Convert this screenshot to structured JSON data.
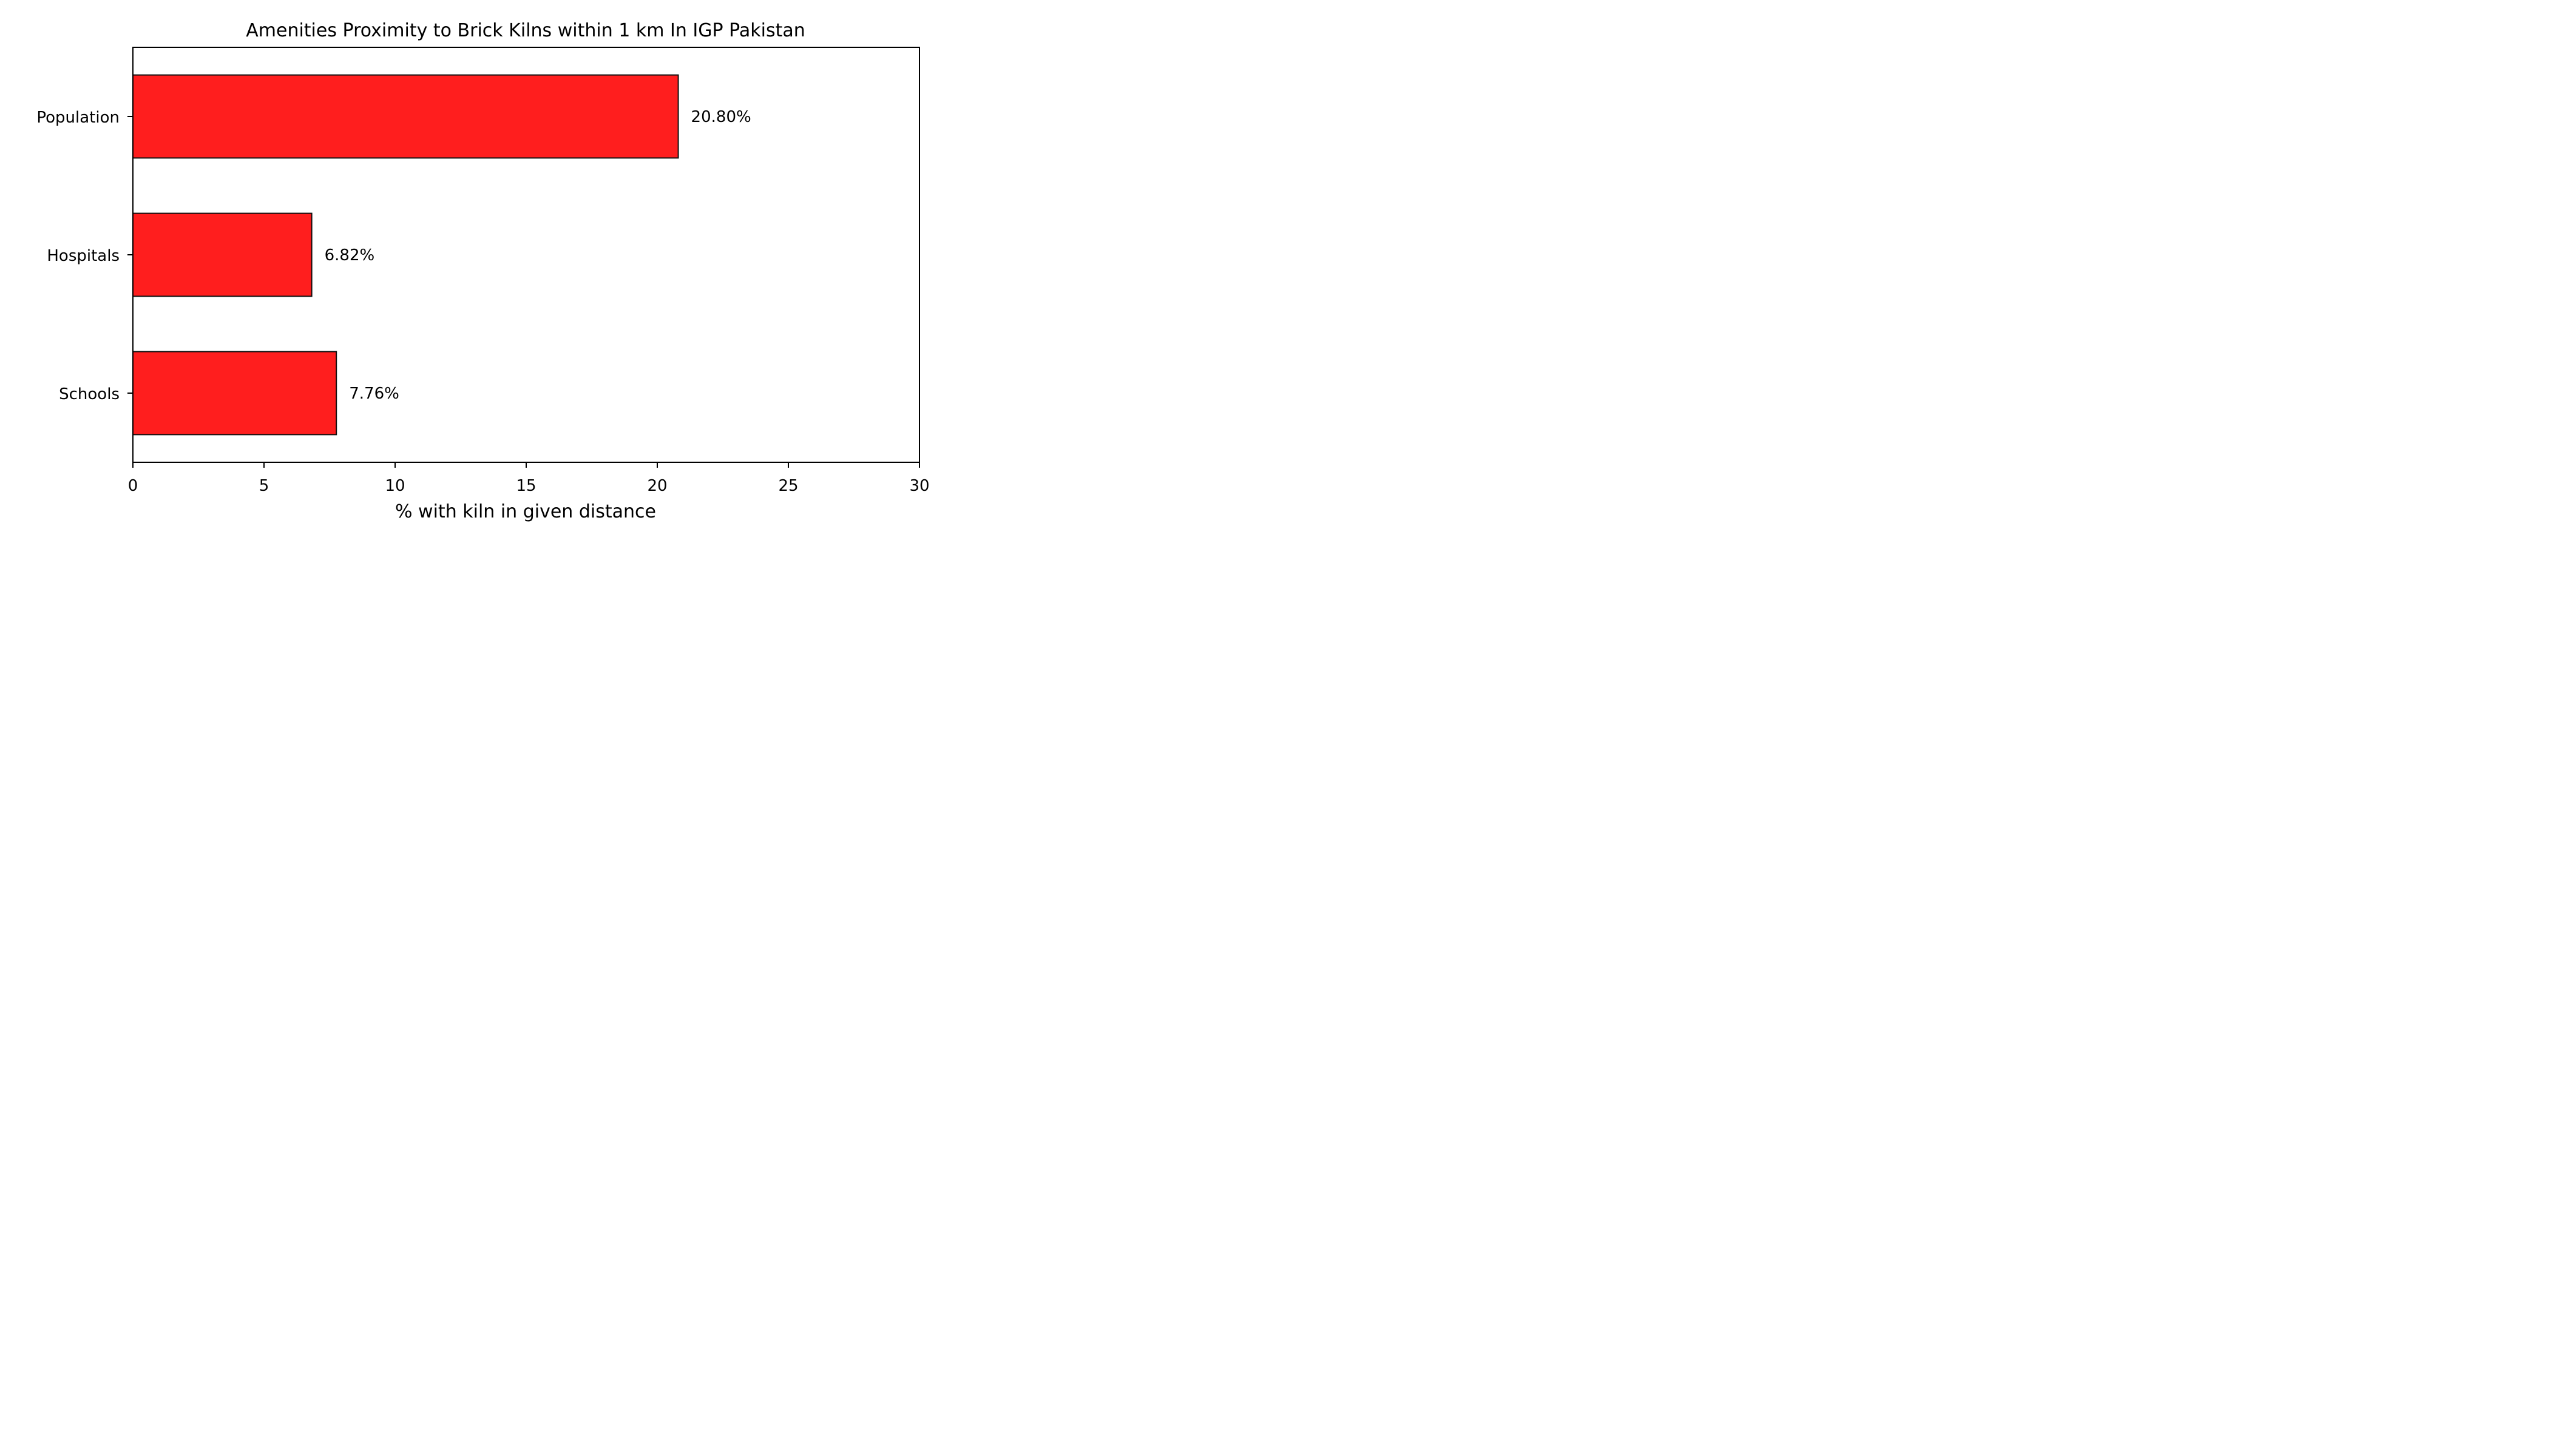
{
  "chart_data": {
    "type": "bar",
    "orientation": "horizontal",
    "title": "Amenities Proximity to Brick Kilns within 1 km In IGP Pakistan",
    "xlabel": "% with kiln in given distance",
    "ylabel": "",
    "categories": [
      "Population",
      "Hospitals",
      "Schools"
    ],
    "values": [
      20.8,
      6.82,
      7.76
    ],
    "data_labels": [
      "20.80%",
      "6.82%",
      "7.76%"
    ],
    "xlim": [
      0,
      30
    ],
    "xticks": [
      0,
      5,
      10,
      15,
      20,
      25,
      30
    ],
    "grid": false,
    "legend": "none",
    "colors": {
      "bar_fill": "#ff1e1e",
      "bar_edge": "#111111",
      "axis": "#000000"
    }
  }
}
